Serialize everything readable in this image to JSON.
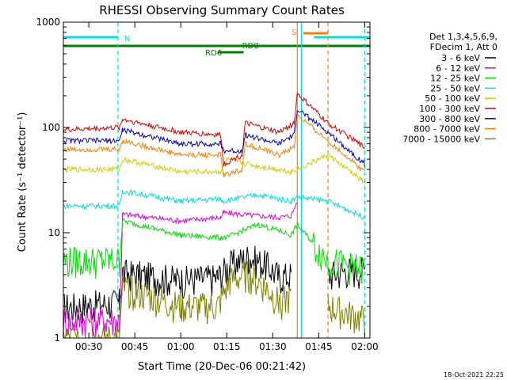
{
  "chart_data": {
    "type": "line",
    "title": "RHESSI Observing Summary Count Rates",
    "xlabel": "Start Time (20-Dec-06 00:21:42)",
    "ylabel": "Count Rate (s⁻¹ detector⁻¹)",
    "y_scale": "log",
    "ylim": [
      1,
      1000
    ],
    "xlim": [
      "00:21:42",
      "02:01:42"
    ],
    "x_ticks": [
      "00:30",
      "00:45",
      "01:00",
      "01:15",
      "01:30",
      "01:45",
      "02:00"
    ],
    "y_ticks": [
      "1",
      "10",
      "100",
      "1000"
    ],
    "legend_header": [
      "Det 1,3,4,5,6,9,",
      "FDecim 1, Att 0"
    ],
    "legend_position": "right",
    "series": [
      {
        "name": "3 - 6 keV",
        "color": "#000000",
        "x": [
          "00:21:42",
          "00:40",
          "00:41",
          "01:00",
          "01:12",
          "01:16",
          "01:22",
          "01:28",
          "01:32",
          "01:36",
          "01:40",
          "01:48",
          "01:55",
          "02:00"
        ],
        "y": [
          2.0,
          2.2,
          4.2,
          3.6,
          3.8,
          5.0,
          6.0,
          5.0,
          3.9,
          4.0,
          null,
          4.0,
          4.5,
          4.5
        ]
      },
      {
        "name": "6 - 12 keV",
        "color": "#e000e0",
        "x": [
          "00:21:42",
          "00:40",
          "00:41",
          "01:00",
          "01:13",
          "01:14",
          "01:25",
          "01:32",
          "01:36",
          "01:38",
          "01:39"
        ],
        "y": [
          1.5,
          1.5,
          15,
          13,
          14,
          15.5,
          14.5,
          14,
          14.5,
          20,
          null
        ]
      },
      {
        "name": "12 - 25 keV",
        "color": "#00e000",
        "x": [
          "00:21:42",
          "00:40",
          "00:41",
          "01:00",
          "01:13",
          "01:15",
          "01:25",
          "01:32",
          "01:36",
          "01:38",
          "01:48",
          "02:00"
        ],
        "y": [
          5.5,
          5.5,
          13,
          9.5,
          9,
          9,
          12,
          10.5,
          9.5,
          12,
          5.5,
          4.5
        ]
      },
      {
        "name": "25 - 50 keV",
        "color": "#00e0e0",
        "x": [
          "00:21:42",
          "00:40",
          "00:41",
          "01:00",
          "01:13",
          "01:14",
          "01:25",
          "01:32",
          "01:36",
          "01:38",
          "01:48",
          "02:00"
        ],
        "y": [
          18,
          18,
          25,
          20,
          21,
          20,
          23,
          21,
          20,
          22,
          20,
          14
        ]
      },
      {
        "name": "50 - 100 keV",
        "color": "#d0d000",
        "x": [
          "00:21:42",
          "00:40",
          "00:41",
          "01:00",
          "01:13",
          "01:15",
          "01:25",
          "01:32",
          "01:36",
          "01:38",
          "01:48",
          "02:00"
        ],
        "y": [
          40,
          40,
          50,
          38,
          38,
          50,
          43,
          40,
          38,
          40,
          55,
          30
        ]
      },
      {
        "name": "100 - 300 keV",
        "color": "#e00000",
        "x": [
          "00:21:42",
          "00:40",
          "00:41",
          "01:00",
          "01:13",
          "01:14",
          "01:20",
          "01:21",
          "01:32",
          "01:37",
          "01:38",
          "01:48",
          "02:00"
        ],
        "y": [
          95,
          100,
          120,
          90,
          85,
          45,
          55,
          110,
          90,
          110,
          210,
          110,
          65
        ]
      },
      {
        "name": "300 - 800 keV",
        "color": "#0000c8",
        "x": [
          "00:21:42",
          "00:40",
          "00:41",
          "01:00",
          "01:13",
          "01:14",
          "01:20",
          "01:21",
          "01:32",
          "01:37",
          "01:38",
          "01:48",
          "02:00"
        ],
        "y": [
          75,
          75,
          95,
          70,
          70,
          60,
          60,
          85,
          70,
          85,
          150,
          90,
          45
        ]
      },
      {
        "name": "800 - 7000 keV",
        "color": "#ff8000",
        "x": [
          "00:21:42",
          "00:40",
          "00:41",
          "01:00",
          "01:13",
          "01:14",
          "01:20",
          "01:21",
          "01:32",
          "01:37",
          "01:38",
          "01:48",
          "02:00"
        ],
        "y": [
          62,
          62,
          75,
          55,
          55,
          35,
          40,
          70,
          55,
          65,
          130,
          75,
          38
        ]
      },
      {
        "name": "7000 - 15000 keV",
        "color": "#808000",
        "x": [
          "00:21:42",
          "00:40",
          "00:41",
          "01:00",
          "01:12",
          "01:16",
          "01:22",
          "01:28",
          "01:32",
          "01:36",
          "01:40",
          "01:48",
          "02:00"
        ],
        "y": [
          1.0,
          1.0,
          3.0,
          2.0,
          2.0,
          3.5,
          4.0,
          3.0,
          2.2,
          2.5,
          null,
          2.0,
          1.5
        ]
      }
    ],
    "annotations": [
      {
        "label": "N",
        "color": "#00e0e0",
        "kind": "night"
      },
      {
        "label": "RD0",
        "color": "#008000",
        "kind": "flag"
      },
      {
        "label": "RD6",
        "color": "#008000",
        "kind": "flag"
      },
      {
        "label": "S",
        "color": "#ff8000",
        "kind": "saa"
      }
    ]
  },
  "footer_timestamp": "18-Oct-2021 22:25"
}
